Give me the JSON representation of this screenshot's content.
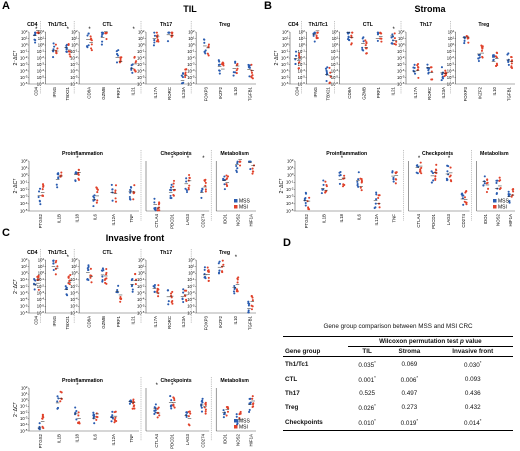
{
  "colors": {
    "mss": "#2a5cb0",
    "msi": "#e0412a",
    "mean": "#222222",
    "divider": "#666666"
  },
  "legend": {
    "mss": "MSS",
    "msi": "MSI"
  },
  "y_label": "2⁻ΔCᵀ",
  "panels": [
    {
      "letter": "A",
      "title": "TIL",
      "top_groups": [
        {
          "title": "CD4",
          "genes": [
            "CD4"
          ],
          "stars": [
            1
          ]
        },
        {
          "title": "Th1/Tc1",
          "genes": [
            "IFNG",
            "TBX21"
          ],
          "stars": [
            0,
            1
          ]
        },
        {
          "title": "CTL",
          "genes": [
            "CD8A",
            "GZMB",
            "PRF1",
            "IL21"
          ],
          "stars": [
            1,
            0,
            0,
            1
          ]
        },
        {
          "title": "Th17",
          "genes": [
            "IL17A",
            "RORC",
            "IL23A"
          ],
          "stars": [
            0,
            0,
            0
          ]
        },
        {
          "title": "Treg",
          "genes": [
            "FOXP3",
            "IKZF2",
            "IL10",
            "TGFB1"
          ],
          "stars": [
            0,
            0,
            0,
            0
          ]
        }
      ],
      "bottom_groups": [
        {
          "title": "Proinflammation",
          "genes": [
            "PTGS2",
            "IL1B",
            "IL18",
            "IL6",
            "IL12A",
            "TNF"
          ],
          "stars": [
            0,
            0,
            1,
            0,
            0,
            0
          ]
        },
        {
          "title": "Checkpoints",
          "genes": [
            "CTLA4",
            "PDCD1",
            "LAG3",
            "CD274"
          ],
          "stars": [
            0,
            1,
            1,
            1
          ]
        },
        {
          "title": "Metabolism",
          "genes": [
            "IDO1",
            "NOS2",
            "HIF1A"
          ],
          "stars": [
            0,
            0,
            0
          ]
        }
      ]
    },
    {
      "letter": "B",
      "title": "Stroma",
      "top_groups": [
        {
          "title": "CD4",
          "genes": [
            "CD4"
          ],
          "stars": [
            0
          ]
        },
        {
          "title": "Th1/Tc1",
          "genes": [
            "IFNG",
            "TBX21"
          ],
          "stars": [
            0,
            0
          ]
        },
        {
          "title": "CTL",
          "genes": [
            "CD8A",
            "GZMB",
            "PRF1",
            "IL21"
          ],
          "stars": [
            0,
            0,
            0,
            1
          ]
        },
        {
          "title": "Th17",
          "genes": [
            "IL17A",
            "RORC",
            "IL23A"
          ],
          "stars": [
            0,
            0,
            0
          ]
        },
        {
          "title": "Treg",
          "genes": [
            "FOXP3",
            "IKZF2",
            "IL10",
            "TGFB1"
          ],
          "stars": [
            0,
            0,
            0,
            0
          ]
        }
      ],
      "bottom_groups": [
        {
          "title": "Proinflammation",
          "genes": [
            "PTGS2",
            "IL1B",
            "IL18",
            "IL6",
            "IL12A",
            "TNF"
          ],
          "stars": [
            0,
            0,
            1,
            0,
            0,
            0
          ]
        },
        {
          "title": "Checkpoints",
          "genes": [
            "CTLA4",
            "PDCD1",
            "LAG3",
            "CD274"
          ],
          "stars": [
            1,
            0,
            1,
            0
          ]
        },
        {
          "title": "Metabolism",
          "genes": [
            "IDO1",
            "NOS2",
            "HIF1A"
          ],
          "stars": [
            0,
            0,
            0
          ]
        }
      ]
    },
    {
      "letter": "C",
      "title": "Invasive front",
      "top_groups": [
        {
          "title": "CD4",
          "genes": [
            "CD4"
          ],
          "stars": [
            0
          ]
        },
        {
          "title": "Th1/Tc1",
          "genes": [
            "IFNG",
            "TBX21"
          ],
          "stars": [
            0,
            1
          ]
        },
        {
          "title": "CTL",
          "genes": [
            "CD8A",
            "GZMB",
            "PRF1",
            "IL21"
          ],
          "stars": [
            0,
            0,
            0,
            0
          ]
        },
        {
          "title": "Th17",
          "genes": [
            "IL17A",
            "RORC",
            "IL23A"
          ],
          "stars": [
            0,
            0,
            0
          ]
        },
        {
          "title": "Treg",
          "genes": [
            "FOXP3",
            "IKZF2",
            "IL10",
            "TGFB1"
          ],
          "stars": [
            0,
            0,
            1,
            0
          ]
        }
      ],
      "bottom_groups": [
        {
          "title": "Proinflammation",
          "genes": [
            "PTGS2",
            "IL1B",
            "IL18",
            "IL6",
            "IL12A",
            "TNF"
          ],
          "stars": [
            0,
            0,
            1,
            0,
            0,
            0
          ]
        },
        {
          "title": "Checkpoints",
          "genes": [
            "CTLA4",
            "PDCD1",
            "LAG3",
            "CD274"
          ],
          "stars": [
            1,
            1,
            0,
            0
          ]
        },
        {
          "title": "Metabolism",
          "genes": [
            "IDO1",
            "NOS2",
            "HIF1A"
          ],
          "stars": [
            0,
            0,
            0
          ]
        }
      ]
    }
  ],
  "table": {
    "letter": "D",
    "caption": "Gene group comparison between MSS and MSI CRC",
    "col_group": "Gene group",
    "test_pre": "Wilcoxon permutation test ",
    "test_p": "p",
    "test_post": " value",
    "columns": [
      "TIL",
      "Stroma",
      "Invasive front"
    ],
    "rows": [
      {
        "group": "Th1/Tc1",
        "values": [
          "0.035*",
          "0.069",
          "0.030*"
        ]
      },
      {
        "group": "CTL",
        "values": [
          "0.001*",
          "0.006*",
          "0.093"
        ]
      },
      {
        "group": "Th17",
        "values": [
          "0.525",
          "0.497",
          "0.436"
        ]
      },
      {
        "group": "Treg",
        "values": [
          "0.026*",
          "0.273",
          "0.432"
        ]
      },
      {
        "group": "Checkpoints",
        "values": [
          "0.010*",
          "0.019*",
          "0.014*"
        ]
      }
    ]
  }
}
